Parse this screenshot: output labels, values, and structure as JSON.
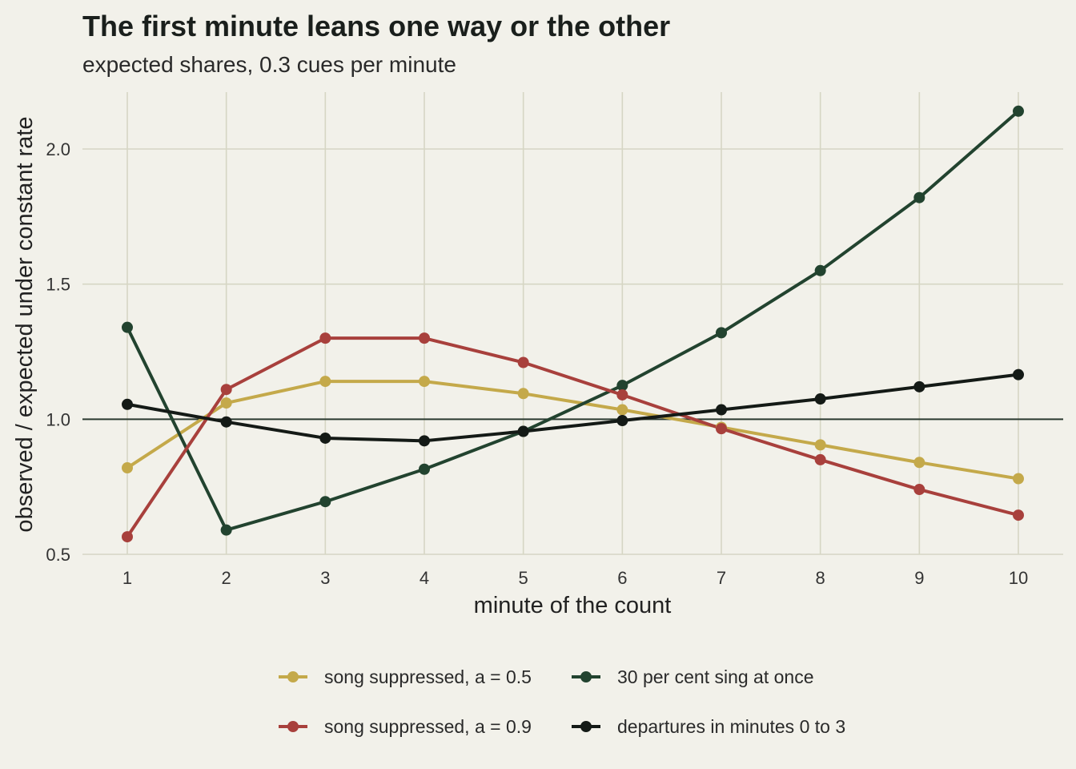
{
  "chart_data": {
    "type": "line",
    "title": "The first minute leans one way or the other",
    "subtitle": "expected shares, 0.3 cues per minute",
    "xlabel": "minute of the count",
    "ylabel": "observed / expected under constant rate",
    "x": [
      1,
      2,
      3,
      4,
      5,
      6,
      7,
      8,
      9,
      10
    ],
    "x_ticks": [
      "1",
      "2",
      "3",
      "4",
      "5",
      "6",
      "7",
      "8",
      "9",
      "10"
    ],
    "y_ticks": [
      "0.5",
      "1.0",
      "1.5",
      "2.0"
    ],
    "ylim": [
      0.5,
      2.2
    ],
    "reference_line": 1.0,
    "grid": true,
    "legend_position": "bottom",
    "series": [
      {
        "name": "song suppressed, a = 0.5",
        "color": "#c4a94a",
        "values": [
          0.82,
          1.06,
          1.14,
          1.14,
          1.095,
          1.035,
          0.97,
          0.905,
          0.84,
          0.78
        ]
      },
      {
        "name": "30 per cent sing at once",
        "color": "#22432f",
        "values": [
          1.34,
          0.59,
          0.695,
          0.815,
          0.955,
          1.125,
          1.32,
          1.55,
          1.82,
          2.14
        ]
      },
      {
        "name": "song suppressed, a = 0.9",
        "color": "#a8403c",
        "values": [
          0.565,
          1.11,
          1.3,
          1.3,
          1.21,
          1.09,
          0.965,
          0.85,
          0.74,
          0.645
        ]
      },
      {
        "name": "departures in minutes 0 to 3",
        "color": "#141a16",
        "values": [
          1.055,
          0.99,
          0.93,
          0.92,
          0.955,
          0.995,
          1.035,
          1.075,
          1.12,
          1.165
        ]
      }
    ]
  }
}
